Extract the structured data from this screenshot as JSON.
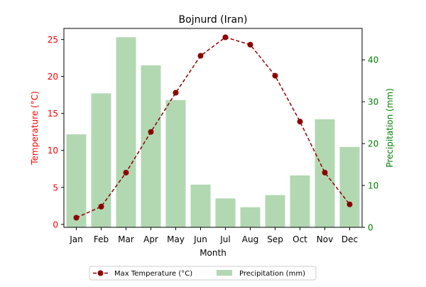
{
  "chart_data": {
    "type": "bar+line",
    "title": "Bojnurd (Iran)",
    "xlabel": "Month",
    "categories": [
      "Jan",
      "Feb",
      "Mar",
      "Apr",
      "May",
      "Jun",
      "Jul",
      "Aug",
      "Sep",
      "Oct",
      "Nov",
      "Dec"
    ],
    "left_axis": {
      "label": "Temperature (°C)",
      "color": "#ff0000",
      "ylim": [
        -0.4,
        26.5
      ],
      "ticks": [
        0,
        5,
        10,
        15,
        20,
        25
      ]
    },
    "right_axis": {
      "label": "Precipitation (mm)",
      "color": "#008000",
      "ylim": [
        0,
        47.5
      ],
      "ticks": [
        0,
        10,
        20,
        30,
        40
      ]
    },
    "series": [
      {
        "name": "Max Temperature (°C)",
        "kind": "line",
        "axis": "left",
        "color": "#8b0000",
        "style": "dashed",
        "marker": "circle",
        "values": [
          0.9,
          2.4,
          7.0,
          12.5,
          17.8,
          22.8,
          25.3,
          24.3,
          20.1,
          13.9,
          7.0,
          2.7
        ]
      },
      {
        "name": "Precipitation (mm)",
        "kind": "bar",
        "axis": "right",
        "color": "#b2d8b2",
        "values": [
          22.2,
          32.0,
          45.4,
          38.7,
          30.4,
          10.2,
          6.9,
          4.8,
          7.7,
          12.4,
          25.8,
          19.2
        ]
      }
    ],
    "grid": false,
    "legend_position": "bottom-center"
  }
}
